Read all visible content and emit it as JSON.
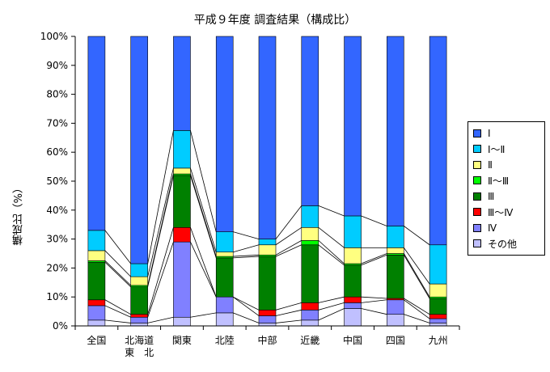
{
  "chart_data": {
    "type": "bar",
    "stacked": true,
    "title": "平成９年度 調査結果（構成比）",
    "ylabel": "構成比（%）",
    "xlabel": "",
    "ylim": [
      0,
      100
    ],
    "yticks": [
      "0%",
      "10%",
      "20%",
      "30%",
      "40%",
      "50%",
      "60%",
      "70%",
      "80%",
      "90%",
      "100%"
    ],
    "categories": [
      "全国",
      "北海道\n東　北",
      "関東",
      "北陸",
      "中部",
      "近畿",
      "中国",
      "四国",
      "九州"
    ],
    "legend_position": "right",
    "grid": false,
    "series": [
      {
        "name": "その他",
        "color": "#c0c0ff",
        "values": [
          2,
          1,
          3,
          4.5,
          1,
          2,
          6,
          4,
          1
        ]
      },
      {
        "name": "Ⅳ",
        "color": "#8080ff",
        "values": [
          5,
          2,
          26,
          5.5,
          2.5,
          3.5,
          2,
          5,
          1.5
        ]
      },
      {
        "name": "Ⅲ～Ⅳ",
        "color": "#ff0000",
        "values": [
          2,
          1,
          5,
          0,
          2,
          2.5,
          2,
          0.5,
          1.5
        ]
      },
      {
        "name": "Ⅲ",
        "color": "#008000",
        "values": [
          13,
          9.5,
          18,
          13.5,
          18.5,
          20,
          11,
          15,
          5.5
        ]
      },
      {
        "name": "Ⅱ～Ⅲ",
        "color": "#00ff00",
        "values": [
          0.5,
          0.5,
          0.5,
          0.5,
          0.5,
          1.5,
          0.5,
          0.5,
          0.5
        ]
      },
      {
        "name": "Ⅱ",
        "color": "#ffff80",
        "values": [
          3.5,
          3,
          2,
          1.5,
          3.5,
          4.5,
          5.5,
          2,
          4.5
        ]
      },
      {
        "name": "Ⅰ～Ⅱ",
        "color": "#00ccff",
        "values": [
          7,
          4.5,
          13,
          7,
          2,
          7.5,
          11,
          7.5,
          13.5
        ]
      },
      {
        "name": "Ⅰ",
        "color": "#3366ff",
        "values": [
          67,
          78.5,
          32.5,
          67.5,
          70,
          58.5,
          62,
          65.5,
          72
        ]
      }
    ]
  }
}
